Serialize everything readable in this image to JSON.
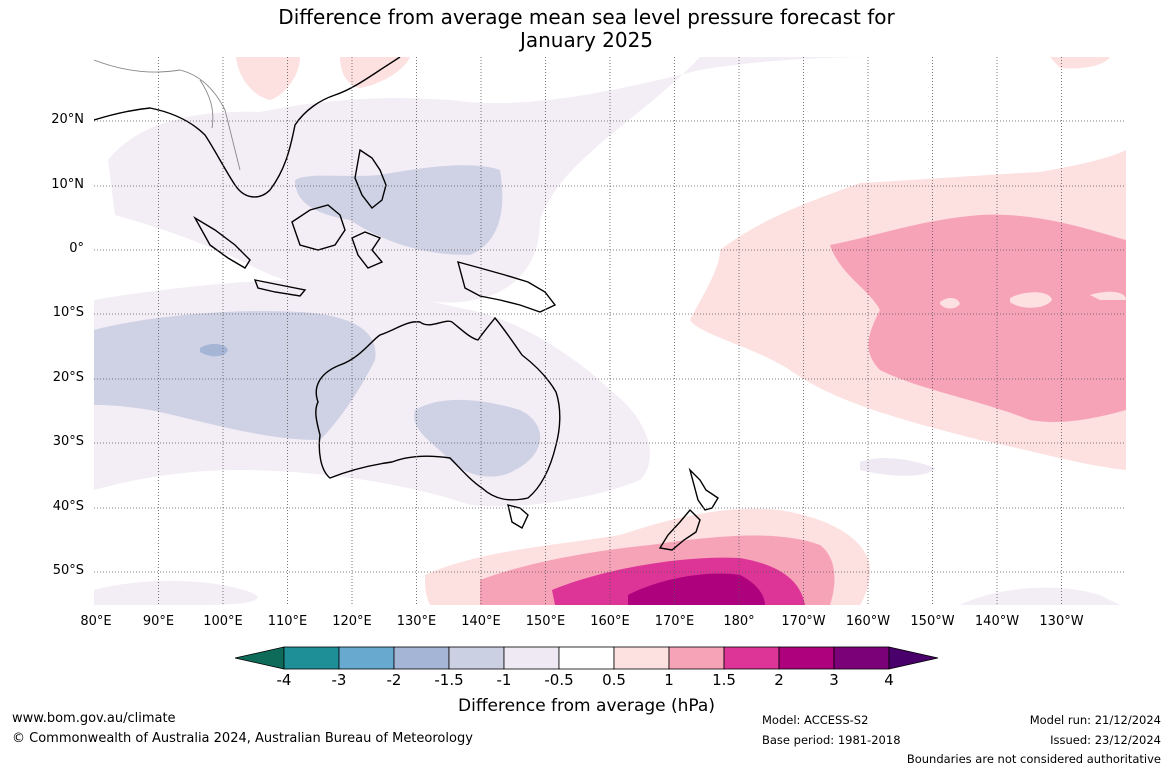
{
  "title": {
    "line1": "Difference from average mean sea level pressure forecast for",
    "line2": "January 2025"
  },
  "map": {
    "region": "Indo-Pacific and Australasia",
    "lat_labels": [
      "20°N",
      "10°N",
      "0°",
      "10°S",
      "20°S",
      "30°S",
      "40°S",
      "50°S"
    ],
    "lon_labels": [
      "80°E",
      "90°E",
      "100°E",
      "110°E",
      "120°E",
      "130°E",
      "140°E",
      "150°E",
      "160°E",
      "170°E",
      "180°",
      "170°W",
      "160°W",
      "150°W",
      "140°W",
      "130°W"
    ],
    "grid": true
  },
  "colorbar": {
    "ticks": [
      "-4",
      "-3",
      "-2",
      "-1.5",
      "-1",
      "-0.5",
      "0.5",
      "1",
      "1.5",
      "2",
      "3",
      "4"
    ],
    "colors": [
      "#0e6b5a",
      "#1e8f96",
      "#67a9cf",
      "#a5b5d6",
      "#ccd0e3",
      "#efe9f3",
      "#ffffff",
      "#fde0e0",
      "#f7a3b7",
      "#dd3497",
      "#ae017e",
      "#7a0177",
      "#49006a"
    ],
    "label": "Difference from average (hPa)"
  },
  "footer": {
    "website": "www.bom.gov.au/climate",
    "copyright": "© Commonwealth of Australia 2024, Australian Bureau of Meteorology",
    "model": "Model: ACCESS-S2",
    "base_period": "Base period: 1981-2018",
    "model_run": "Model run: 21/12/2024",
    "issued": "Issued: 23/12/2024",
    "disclaimer": "Boundaries are not considered authoritative"
  }
}
